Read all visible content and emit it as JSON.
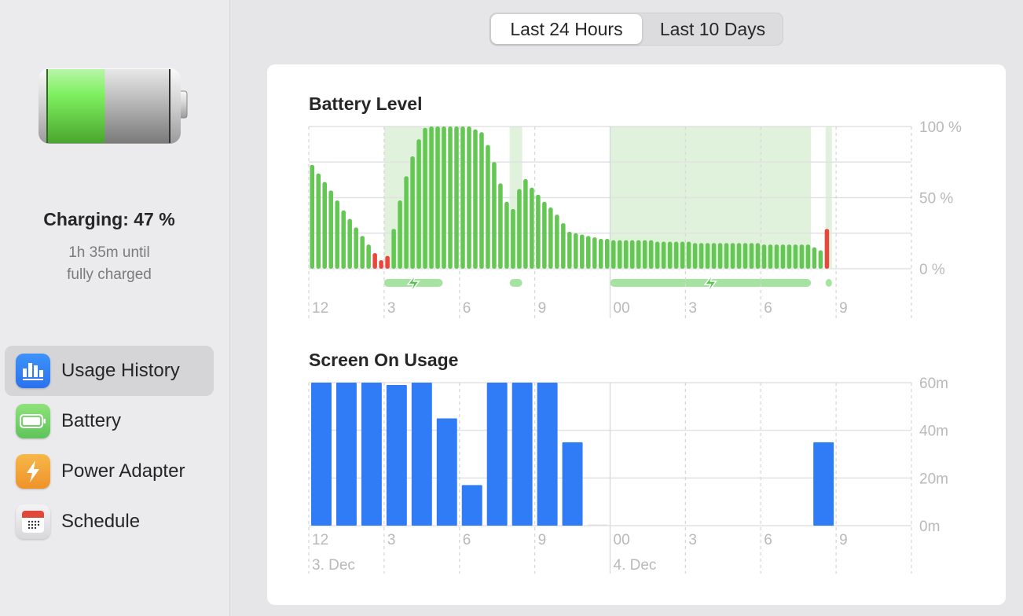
{
  "sidebar": {
    "battery_level_percent": 47,
    "charge_title": "Charging: 47 %",
    "charge_sub_line1": "1h 35m until",
    "charge_sub_line2": "fully charged",
    "items": [
      {
        "label": "Usage History",
        "icon": "bar-chart-icon",
        "color": "#2f7cf6",
        "active": true
      },
      {
        "label": "Battery",
        "icon": "battery-icon",
        "color": "#5ec45a",
        "active": false
      },
      {
        "label": "Power Adapter",
        "icon": "bolt-icon",
        "color": "#f19a2c",
        "active": false
      },
      {
        "label": "Schedule",
        "icon": "calendar-icon",
        "color": "#e6e6e8",
        "active": false
      }
    ]
  },
  "segmented": {
    "options": [
      "Last 24 Hours",
      "Last 10 Days"
    ],
    "selected": "Last 24 Hours"
  },
  "colors": {
    "battery_bar": "#64c653",
    "battery_low": "#e8473c",
    "charging_shade": "#e0f2dc",
    "charging_bar": "#a6e3a0",
    "usage_bar": "#2f7cf6"
  },
  "chart_data": [
    {
      "type": "bar",
      "title": "Battery Level",
      "x_start": "3. Dec 12:00",
      "interval_minutes": 15,
      "ylim": [
        0,
        100
      ],
      "y_ticks": [
        "100 %",
        "50 %",
        "0 %"
      ],
      "x_tick_labels": [
        "12",
        "3",
        "6",
        "9",
        "00",
        "3",
        "6",
        "9"
      ],
      "values": [
        73,
        67,
        61,
        55,
        48,
        41,
        35,
        29,
        23,
        17,
        11,
        6,
        9,
        28,
        48,
        65,
        79,
        91,
        99,
        100,
        100,
        100,
        100,
        100,
        100,
        100,
        98,
        96,
        87,
        75,
        60,
        47,
        42,
        56,
        63,
        57,
        52,
        47,
        43,
        38,
        32,
        26,
        25,
        24,
        23,
        22,
        21,
        21,
        20,
        20,
        20,
        20,
        20,
        20,
        20,
        19,
        19,
        19,
        19,
        19,
        19,
        18,
        18,
        18,
        18,
        18,
        18,
        18,
        18,
        18,
        18,
        18,
        17,
        17,
        17,
        17,
        17,
        17,
        17,
        17,
        15,
        13,
        28
      ],
      "low_indices": [
        10,
        11,
        12,
        82
      ],
      "charging_periods": [
        [
          "15:00",
          "17:20"
        ],
        [
          "20:00",
          "20:30"
        ],
        [
          "00:00",
          "08:00"
        ],
        [
          "08:35",
          "08:50"
        ]
      ]
    },
    {
      "type": "bar",
      "title": "Screen On Usage",
      "x_start": "3. Dec 12:00",
      "interval_minutes": 60,
      "ylim": [
        0,
        60
      ],
      "y_ticks": [
        "60m",
        "40m",
        "20m",
        "0m"
      ],
      "x_tick_labels": [
        "12",
        "3",
        "6",
        "9",
        "00",
        "3",
        "6",
        "9"
      ],
      "date_labels": [
        "3. Dec",
        "4. Dec"
      ],
      "values": [
        60,
        60,
        60,
        59,
        60,
        45,
        17,
        60,
        60,
        60,
        35,
        0.5,
        0,
        0,
        0,
        0,
        0,
        0,
        0,
        0,
        35,
        0,
        0,
        0
      ]
    }
  ]
}
